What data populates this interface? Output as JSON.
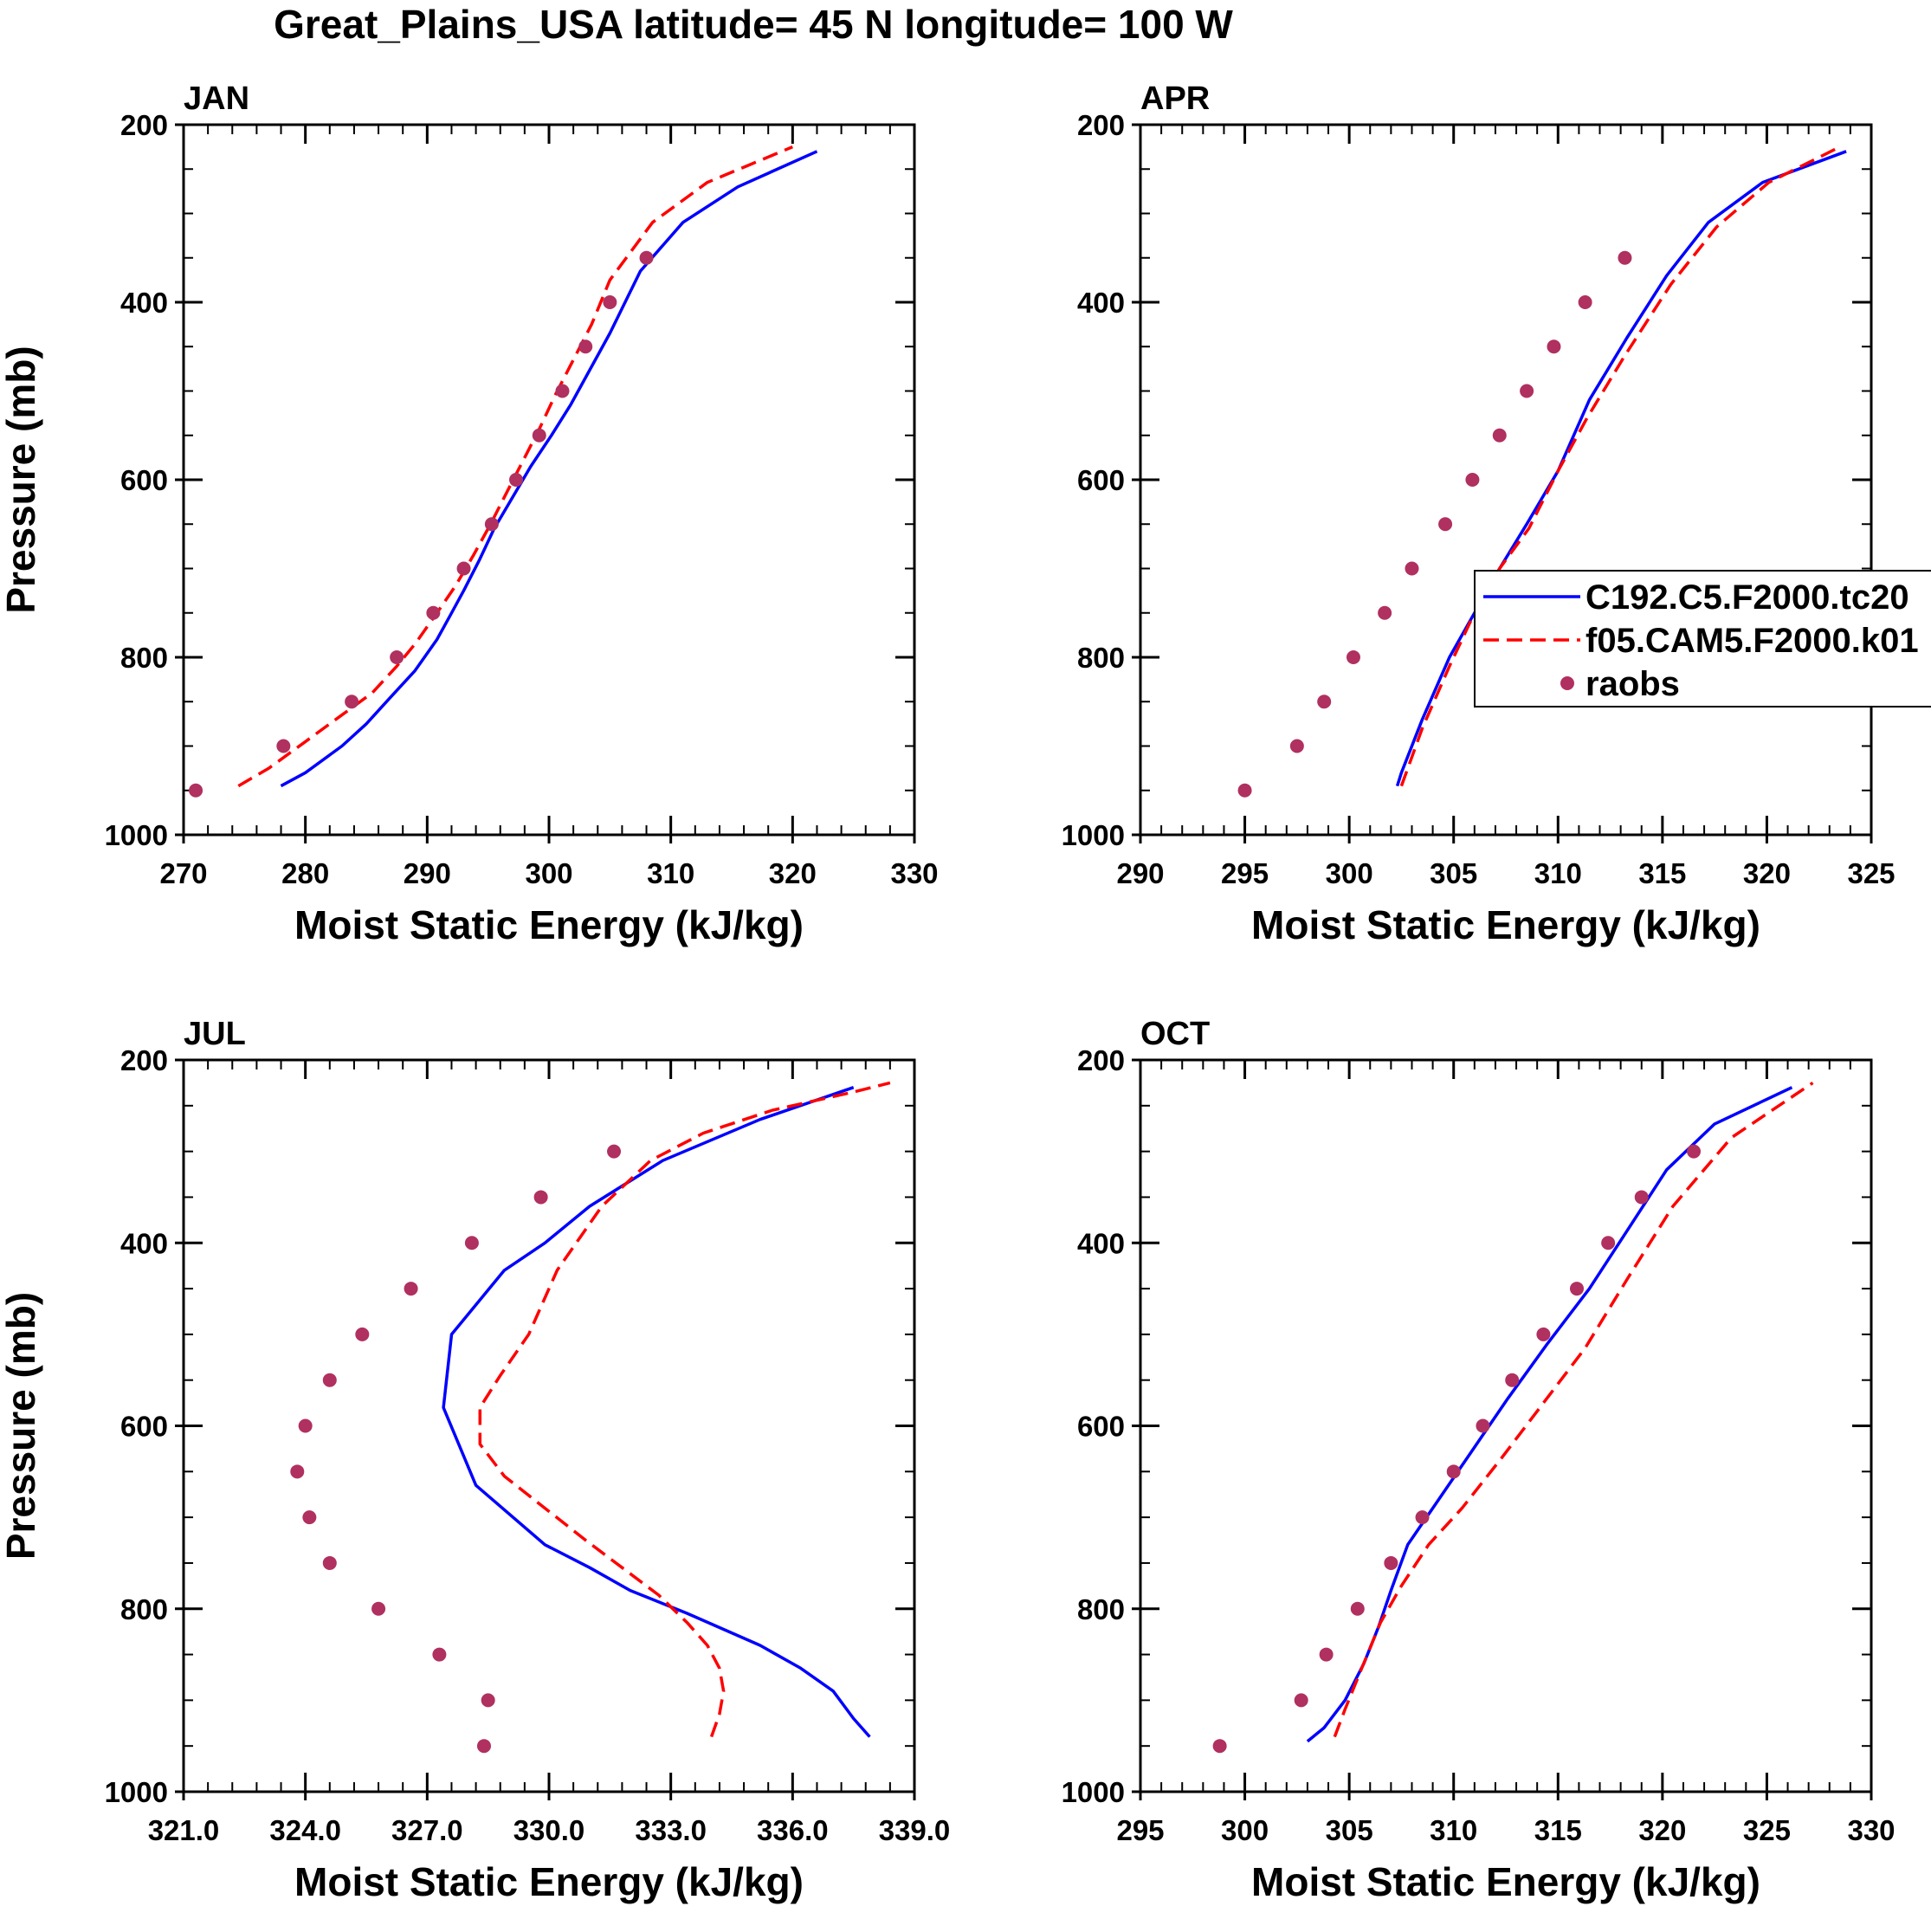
{
  "figure": {
    "title": "Great_Plains_USA  latitude= 45 N longitude= 100 W",
    "colors": {
      "model_a": "#0000ff",
      "model_b": "#ff0000",
      "raobs": "#b03060",
      "axis": "#000000"
    }
  },
  "legend": {
    "entries": [
      {
        "label": "C192.C5.F2000.tc20",
        "style": "solid-line",
        "color": "#0000ff"
      },
      {
        "label": "f05.CAM5.F2000.k01",
        "style": "dashed-line",
        "color": "#ff0000"
      },
      {
        "label": "raobs",
        "style": "marker",
        "color": "#b03060"
      }
    ]
  },
  "chart_data": [
    {
      "type": "line",
      "panel": "JAN",
      "title": "JAN",
      "xlabel": "Moist Static Energy (kJ/kg)",
      "ylabel": "Pressure (mb)",
      "xlim": [
        270,
        330
      ],
      "ylim": [
        1000,
        200
      ],
      "xticks": [
        270,
        280,
        290,
        300,
        310,
        320,
        330
      ],
      "xtick_labels": [
        "270",
        "280",
        "290",
        "300",
        "310",
        "320",
        "330"
      ],
      "yticks": [
        200,
        400,
        600,
        800,
        1000
      ],
      "ytick_labels": [
        "200",
        "400",
        "600",
        "800",
        "1000"
      ],
      "series": [
        {
          "name": "C192.C5.F2000.tc20",
          "style": "solid",
          "color": "#0000ff",
          "x": [
            278.0,
            280.0,
            283.0,
            285.0,
            287.0,
            289.0,
            290.8,
            292.0,
            293.0,
            294.3,
            295.5,
            297.0,
            298.5,
            300.2,
            301.8,
            303.4,
            305.0,
            307.5,
            311.0,
            315.5,
            322.0
          ],
          "y": [
            945,
            930,
            900,
            875,
            845,
            815,
            780,
            750,
            725,
            690,
            655,
            620,
            585,
            550,
            515,
            475,
            435,
            365,
            310,
            270,
            230
          ]
        },
        {
          "name": "f05.CAM5.F2000.k01",
          "style": "dashed",
          "color": "#ff0000",
          "x": [
            274.5,
            277.0,
            280.0,
            283.0,
            285.5,
            287.5,
            289.0,
            290.8,
            292.3,
            293.8,
            295.2,
            296.5,
            298.0,
            299.3,
            300.5,
            302.0,
            303.5,
            305.0,
            308.5,
            313.0,
            316.5,
            320.0
          ],
          "y": [
            945,
            925,
            895,
            865,
            840,
            810,
            785,
            750,
            720,
            685,
            650,
            615,
            575,
            540,
            505,
            465,
            425,
            375,
            310,
            265,
            245,
            225
          ]
        },
        {
          "name": "raobs",
          "style": "marker",
          "color": "#b03060",
          "x": [
            271.0,
            278.2,
            283.8,
            287.5,
            290.5,
            293.0,
            295.3,
            297.3,
            299.2,
            301.1,
            303.0,
            305.0,
            308.0
          ],
          "y": [
            950,
            900,
            850,
            800,
            750,
            700,
            650,
            600,
            550,
            500,
            450,
            400,
            350
          ]
        }
      ]
    },
    {
      "type": "line",
      "panel": "APR",
      "title": "APR",
      "xlabel": "Moist Static Energy (kJ/kg)",
      "ylabel": "",
      "xlim": [
        290,
        325
      ],
      "ylim": [
        1000,
        200
      ],
      "xticks": [
        290,
        295,
        300,
        305,
        310,
        315,
        320,
        325
      ],
      "xtick_labels": [
        "290",
        "295",
        "300",
        "305",
        "310",
        "315",
        "320",
        "325"
      ],
      "yticks": [
        200,
        400,
        600,
        800,
        1000
      ],
      "ytick_labels": [
        "200",
        "400",
        "600",
        "800",
        "1000"
      ],
      "series": [
        {
          "name": "C192.C5.F2000.tc20",
          "style": "solid",
          "color": "#0000ff",
          "x": [
            302.3,
            302.5,
            303.5,
            304.8,
            306.0,
            307.2,
            308.5,
            310.0,
            311.5,
            313.3,
            315.2,
            317.2,
            319.8,
            323.8
          ],
          "y": [
            945,
            930,
            870,
            800,
            750,
            700,
            650,
            590,
            510,
            440,
            370,
            310,
            265,
            230
          ]
        },
        {
          "name": "f05.CAM5.F2000.k01",
          "style": "dashed",
          "color": "#ff0000",
          "x": [
            302.5,
            303.5,
            304.8,
            305.8,
            307.2,
            308.6,
            310.0,
            311.4,
            313.2,
            315.4,
            317.6,
            320.1,
            323.5
          ],
          "y": [
            945,
            880,
            810,
            760,
            700,
            655,
            590,
            530,
            460,
            380,
            315,
            265,
            225
          ]
        },
        {
          "name": "raobs",
          "style": "marker",
          "color": "#b03060",
          "x": [
            295.0,
            297.5,
            298.8,
            300.2,
            301.7,
            303.0,
            304.6,
            305.9,
            307.2,
            308.5,
            309.8,
            311.3,
            313.2
          ],
          "y": [
            950,
            900,
            850,
            800,
            750,
            700,
            650,
            600,
            550,
            500,
            450,
            400,
            350
          ]
        }
      ]
    },
    {
      "type": "line",
      "panel": "JUL",
      "title": "JUL",
      "xlabel": "Moist Static Energy (kJ/kg)",
      "ylabel": "Pressure (mb)",
      "xlim": [
        321.0,
        339.0
      ],
      "ylim": [
        1000,
        200
      ],
      "xticks": [
        321.0,
        324.0,
        327.0,
        330.0,
        333.0,
        336.0,
        339.0
      ],
      "xtick_labels": [
        "321.0",
        "324.0",
        "327.0",
        "330.0",
        "333.0",
        "336.0",
        "339.0"
      ],
      "yticks": [
        200,
        400,
        600,
        800,
        1000
      ],
      "ytick_labels": [
        "200",
        "400",
        "600",
        "800",
        "1000"
      ],
      "series": [
        {
          "name": "C192.C5.F2000.tc20",
          "style": "solid",
          "color": "#0000ff",
          "x": [
            337.9,
            337.5,
            337.0,
            336.2,
            335.2,
            333.4,
            332.0,
            331.0,
            329.9,
            328.2,
            327.4,
            327.6,
            328.9,
            329.9,
            331.0,
            332.8,
            335.2,
            337.5
          ],
          "y": [
            940,
            920,
            890,
            865,
            840,
            805,
            780,
            755,
            730,
            665,
            580,
            500,
            430,
            400,
            360,
            310,
            265,
            230
          ]
        },
        {
          "name": "f05.CAM5.F2000.k01",
          "style": "dashed",
          "color": "#ff0000",
          "x": [
            334.0,
            334.2,
            334.3,
            334.2,
            333.9,
            333.4,
            332.7,
            331.8,
            330.9,
            329.9,
            328.9,
            328.3,
            328.3,
            328.8,
            329.5,
            330.2,
            331.3,
            332.5,
            333.8,
            335.5,
            337.5,
            338.4
          ],
          "y": [
            940,
            915,
            890,
            865,
            840,
            815,
            785,
            755,
            725,
            690,
            655,
            620,
            580,
            545,
            500,
            430,
            360,
            310,
            280,
            255,
            235,
            225
          ]
        },
        {
          "name": "raobs",
          "style": "marker",
          "color": "#b03060",
          "x": [
            328.4,
            328.5,
            327.3,
            325.8,
            324.6,
            324.1,
            323.8,
            324.0,
            324.6,
            325.4,
            326.6,
            328.1,
            329.8,
            331.6
          ],
          "y": [
            950,
            900,
            850,
            800,
            750,
            700,
            650,
            600,
            550,
            500,
            450,
            400,
            350,
            300
          ]
        }
      ]
    },
    {
      "type": "line",
      "panel": "OCT",
      "title": "OCT",
      "xlabel": "Moist Static Energy (kJ/kg)",
      "ylabel": "",
      "xlim": [
        295,
        330
      ],
      "ylim": [
        1000,
        200
      ],
      "xticks": [
        295,
        300,
        305,
        310,
        315,
        320,
        325,
        330
      ],
      "xtick_labels": [
        "295",
        "300",
        "305",
        "310",
        "315",
        "320",
        "325",
        "330"
      ],
      "yticks": [
        200,
        400,
        600,
        800,
        1000
      ],
      "ytick_labels": [
        "200",
        "400",
        "600",
        "800",
        "1000"
      ],
      "series": [
        {
          "name": "C192.C5.F2000.tc20",
          "style": "solid",
          "color": "#0000ff",
          "x": [
            303.0,
            303.8,
            304.8,
            305.7,
            306.4,
            307.0,
            307.8,
            309.0,
            310.8,
            312.6,
            314.5,
            316.5,
            318.5,
            320.2,
            322.5,
            326.2
          ],
          "y": [
            945,
            930,
            900,
            860,
            820,
            780,
            730,
            690,
            630,
            570,
            510,
            450,
            380,
            320,
            270,
            230
          ]
        },
        {
          "name": "f05.CAM5.F2000.k01",
          "style": "dashed",
          "color": "#ff0000",
          "x": [
            304.3,
            304.8,
            305.6,
            306.5,
            307.5,
            308.8,
            310.4,
            312.3,
            314.3,
            316.3,
            318.3,
            320.5,
            323.3,
            327.2
          ],
          "y": [
            940,
            910,
            865,
            815,
            775,
            730,
            690,
            635,
            575,
            515,
            440,
            360,
            285,
            225
          ]
        },
        {
          "name": "raobs",
          "style": "marker",
          "color": "#b03060",
          "x": [
            298.8,
            302.7,
            303.9,
            305.4,
            307.0,
            308.5,
            310.0,
            311.4,
            312.8,
            314.3,
            315.9,
            317.4,
            319.0,
            321.5
          ],
          "y": [
            950,
            900,
            850,
            800,
            750,
            700,
            650,
            600,
            550,
            500,
            450,
            400,
            350,
            300
          ]
        }
      ]
    }
  ]
}
